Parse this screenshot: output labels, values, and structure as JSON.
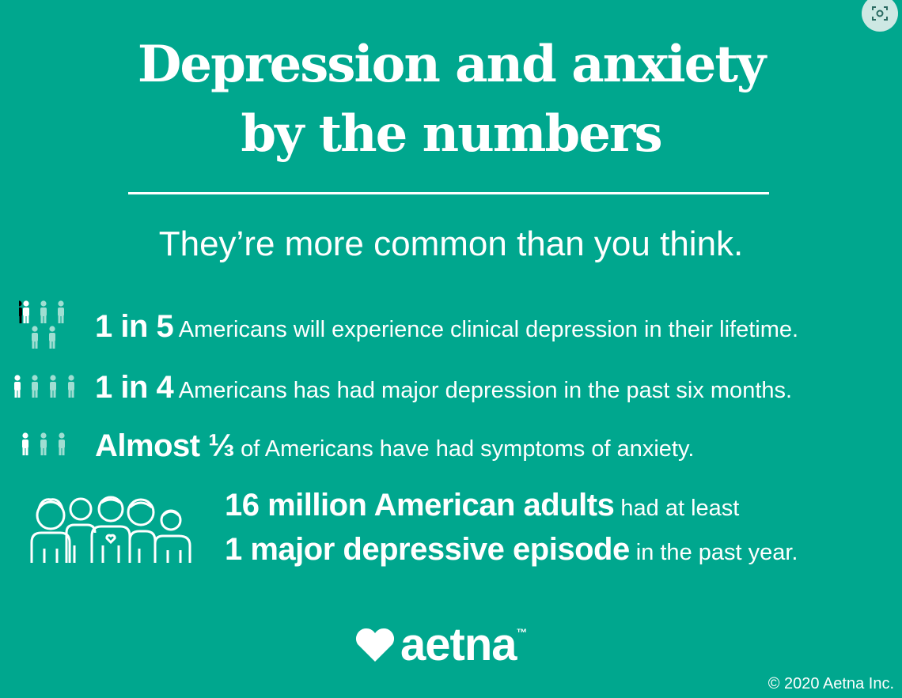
{
  "title": {
    "line1": "Depression and anxiety",
    "line2": "by the numbers"
  },
  "subtitle": "They’re more common than you think.",
  "stats": [
    {
      "highlight": "1 in 5",
      "text": "Americans will experience clinical depression in their lifetime.",
      "icon": "people-group-icon",
      "filled": 1,
      "total": 5
    },
    {
      "highlight": "1 in 4",
      "text": "Americans has had major depression in the past six months.",
      "icon": "people-row-icon",
      "filled": 1,
      "total": 4
    },
    {
      "highlight": "Almost ⅓",
      "text": "of Americans have had symptoms of anxiety.",
      "icon": "people-row-icon",
      "filled": 1,
      "total": 3
    }
  ],
  "adults_stat": {
    "highlight1": "16 million American adults",
    "text1": "had at least",
    "highlight2": "1 major depressive episode",
    "text2": "in the past year.",
    "icon": "family-group-icon"
  },
  "logo": {
    "word": "aetna",
    "tm": "™",
    "icon": "heart-icon"
  },
  "copyright": "© 2020 Aetna Inc.",
  "colors": {
    "background": "#00a78e",
    "text": "#ffffff",
    "muted_icon": "#9fded2"
  },
  "overlay_button": {
    "icon": "screenshot-icon"
  }
}
